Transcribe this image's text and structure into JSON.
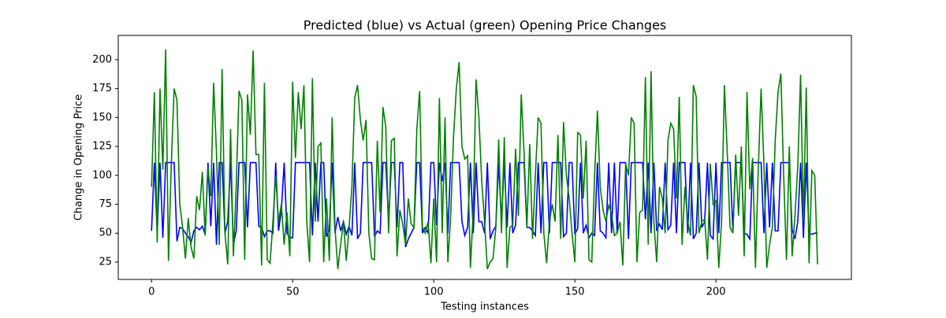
{
  "chart_data": {
    "type": "line",
    "title": "Predicted (blue) vs Actual (green) Opening Price Changes",
    "x_label": "Testing instances",
    "y_label": "Change in Opening Price",
    "xlim": [
      -11.8,
      248
    ],
    "ylim": [
      10,
      221
    ],
    "xticks": [
      0,
      50,
      100,
      150,
      200
    ],
    "yticks": [
      25,
      50,
      75,
      100,
      125,
      150,
      175,
      200
    ],
    "x": [
      0,
      1,
      2,
      3,
      4,
      5,
      6,
      7,
      8,
      9,
      10,
      11,
      12,
      13,
      14,
      15,
      16,
      17,
      18,
      19,
      20,
      21,
      22,
      23,
      24,
      25,
      26,
      27,
      28,
      29,
      30,
      31,
      32,
      33,
      34,
      35,
      36,
      37,
      38,
      39,
      40,
      41,
      42,
      43,
      44,
      45,
      46,
      47,
      48,
      49,
      50,
      51,
      52,
      53,
      54,
      55,
      56,
      57,
      58,
      59,
      60,
      61,
      62,
      63,
      64,
      65,
      66,
      67,
      68,
      69,
      70,
      71,
      72,
      73,
      74,
      75,
      76,
      77,
      78,
      79,
      80,
      81,
      82,
      83,
      84,
      85,
      86,
      87,
      88,
      89,
      90,
      91,
      92,
      93,
      94,
      95,
      96,
      97,
      98,
      99,
      100,
      101,
      102,
      103,
      104,
      105,
      106,
      107,
      108,
      109,
      110,
      111,
      112,
      113,
      114,
      115,
      116,
      117,
      118,
      119,
      120,
      121,
      122,
      123,
      124,
      125,
      126,
      127,
      128,
      129,
      130,
      131,
      132,
      133,
      134,
      135,
      136,
      137,
      138,
      139,
      140,
      141,
      142,
      143,
      144,
      145,
      146,
      147,
      148,
      149,
      150,
      151,
      152,
      153,
      154,
      155,
      156,
      157,
      158,
      159,
      160,
      161,
      162,
      163,
      164,
      165,
      166,
      167,
      168,
      169,
      170,
      171,
      172,
      173,
      174,
      175,
      176,
      177,
      178,
      179,
      180,
      181,
      182,
      183,
      184,
      185,
      186,
      187,
      188,
      189,
      190,
      191,
      192,
      193,
      194,
      195,
      196,
      197,
      198,
      199,
      200,
      201,
      202,
      203,
      204,
      205,
      206,
      207,
      208,
      209,
      210,
      211,
      212,
      213,
      214,
      215,
      216,
      217,
      218,
      219,
      220,
      221,
      222,
      223,
      224,
      225,
      226,
      227,
      228,
      229,
      230,
      231,
      232,
      233,
      234,
      235,
      236
    ],
    "series": [
      {
        "name": "Predicted",
        "color": "#0000ff",
        "values": [
          52,
          111,
          50,
          111,
          46,
          111,
          111,
          111,
          111,
          43,
          55,
          54,
          50,
          47,
          42,
          52,
          55,
          53,
          56,
          49,
          111,
          56,
          111,
          40,
          111,
          111,
          50,
          60,
          111,
          40,
          52,
          111,
          111,
          111,
          55,
          111,
          111,
          111,
          56,
          55,
          47,
          52,
          52,
          50,
          111,
          52,
          70,
          111,
          50,
          46,
          46,
          111,
          111,
          111,
          111,
          111,
          111,
          48,
          111,
          60,
          111,
          111,
          47,
          53,
          111,
          50,
          64,
          52,
          60,
          49,
          56,
          48,
          111,
          45,
          50,
          111,
          111,
          111,
          111,
          47,
          52,
          50,
          111,
          111,
          60,
          111,
          111,
          55,
          111,
          111,
          38,
          45,
          50,
          55,
          111,
          111,
          50,
          55,
          50,
          111,
          111,
          57,
          111,
          95,
          111,
          50,
          111,
          111,
          111,
          111,
          60,
          48,
          55,
          111,
          50,
          111,
          60,
          60,
          50,
          111,
          45,
          52,
          56,
          111,
          60,
          111,
          55,
          111,
          50,
          57,
          111,
          111,
          111,
          55,
          55,
          52,
          48,
          111,
          50,
          111,
          111,
          50,
          111,
          111,
          111,
          111,
          47,
          50,
          111,
          111,
          49,
          54,
          111,
          50,
          57,
          46,
          50,
          48,
          111,
          52,
          50,
          46,
          111,
          50,
          111,
          50,
          111,
          111,
          111,
          45,
          111,
          111,
          111,
          111,
          111,
          62,
          111,
          50,
          111,
          52,
          58,
          53,
          111,
          53,
          57,
          111,
          50,
          111,
          111,
          111,
          50,
          111,
          45,
          50,
          111,
          55,
          60,
          111,
          48,
          45,
          111,
          50,
          111,
          111,
          111,
          111,
          52,
          111,
          111,
          111,
          50,
          49,
          45,
          111,
          111,
          111,
          111,
          50,
          111,
          55,
          111,
          52,
          52,
          111,
          111,
          111,
          111,
          53,
          45,
          60,
          111,
          46,
          111,
          50,
          49,
          50,
          50
        ]
      },
      {
        "name": "Actual",
        "color": "#008000",
        "values": [
          90,
          172,
          42,
          175,
          105,
          209,
          26,
          110,
          175,
          165,
          75,
          55,
          28,
          63,
          38,
          28,
          82,
          70,
          103,
          48,
          107,
          82,
          180,
          120,
          40,
          192,
          50,
          23,
          140,
          30,
          90,
          173,
          165,
          27,
          170,
          135,
          208,
          118,
          118,
          22,
          180,
          27,
          24,
          60,
          100,
          60,
          75,
          40,
          68,
          30,
          181,
          115,
          172,
          140,
          178,
          60,
          25,
          184,
          60,
          125,
          128,
          25,
          80,
          26,
          150,
          55,
          19,
          40,
          60,
          26,
          55,
          90,
          167,
          178,
          148,
          130,
          148,
          50,
          28,
          27,
          130,
          68,
          159,
          142,
          50,
          130,
          132,
          30,
          70,
          58,
          40,
          80,
          58,
          55,
          140,
          173,
          55,
          50,
          60,
          24,
          80,
          25,
          167,
          50,
          150,
          25,
          65,
          133,
          175,
          198,
          125,
          114,
          117,
          20,
          70,
          183,
          150,
          95,
          60,
          19,
          25,
          28,
          55,
          131,
          50,
          133,
          20,
          55,
          57,
          123,
          65,
          170,
          120,
          55,
          127,
          45,
          100,
          150,
          145,
          50,
          24,
          60,
          75,
          60,
          135,
          45,
          146,
          100,
          80,
          50,
          25,
          137,
          135,
          80,
          130,
          27,
          25,
          100,
          156,
          90,
          70,
          60,
          74,
          67,
          48,
          50,
          60,
          22,
          110,
          100,
          150,
          145,
          25,
          68,
          70,
          185,
          40,
          190,
          60,
          25,
          90,
          80,
          50,
          130,
          145,
          140,
          80,
          168,
          40,
          90,
          60,
          48,
          178,
          168,
          50,
          60,
          62,
          27,
          110,
          75,
          78,
          20,
          60,
          178,
          120,
          55,
          50,
          118,
          65,
          125,
          30,
          172,
          88,
          115,
          20,
          105,
          175,
          110,
          20,
          40,
          55,
          130,
          172,
          188,
          100,
          27,
          125,
          30,
          65,
          108,
          187,
          60,
          176,
          24,
          104,
          100,
          23
        ]
      }
    ]
  }
}
